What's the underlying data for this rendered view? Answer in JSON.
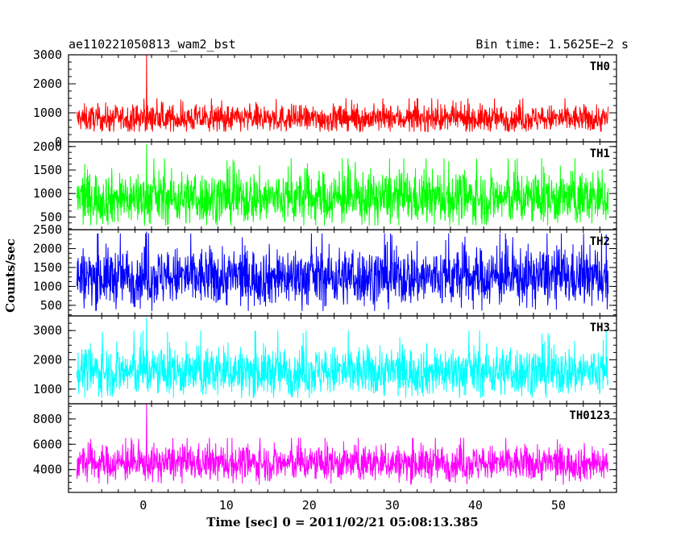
{
  "header": {
    "obs_id": "ae110221050813_wam2_bst",
    "bin_time": "Bin time: 1.5625E−2 s"
  },
  "chart_data": {
    "type": "line",
    "xlabel": "Time [sec] 0 = 2011/02/21 05:08:13.385",
    "ylabel": "Counts/sec",
    "xlim": [
      -9,
      57
    ],
    "xticks": [
      0,
      10,
      20,
      30,
      40,
      50
    ],
    "x_range_data": [
      -8,
      56
    ],
    "grid": false,
    "panels": [
      {
        "name": "TH0",
        "color": "#ff0000",
        "ylim": [
          0,
          3000
        ],
        "yticks": [
          0,
          1000,
          2000,
          3000
        ],
        "baseline": 800,
        "noise": 230,
        "min": 350,
        "max": 1500,
        "spike_x": 0.4,
        "spike_peak": 3000
      },
      {
        "name": "TH1",
        "color": "#00ff00",
        "ylim": [
          230,
          2100
        ],
        "yticks": [
          500,
          1000,
          1500,
          2000
        ],
        "baseline": 900,
        "noise": 280,
        "min": 320,
        "max": 1750,
        "spike_x": 0.4,
        "spike_peak": 2050
      },
      {
        "name": "TH2",
        "color": "#0000ff",
        "ylim": [
          220,
          2500
        ],
        "yticks": [
          500,
          1000,
          1500,
          2000,
          2500
        ],
        "baseline": 1250,
        "noise": 380,
        "min": 350,
        "max": 2400,
        "spike_x": 0.4,
        "spike_peak": 2450
      },
      {
        "name": "TH3",
        "color": "#00ffff",
        "ylim": [
          500,
          3500
        ],
        "yticks": [
          1000,
          2000,
          3000
        ],
        "baseline": 1600,
        "noise": 420,
        "min": 700,
        "max": 3000,
        "spike_x": 0.4,
        "spike_peak": 3450
      },
      {
        "name": "TH0123",
        "color": "#ff00ff",
        "ylim": [
          2200,
          9200
        ],
        "yticks": [
          4000,
          6000,
          8000
        ],
        "baseline": 4500,
        "noise": 700,
        "min": 2800,
        "max": 6500,
        "spike_x": 0.4,
        "spike_peak": 9200
      }
    ]
  }
}
